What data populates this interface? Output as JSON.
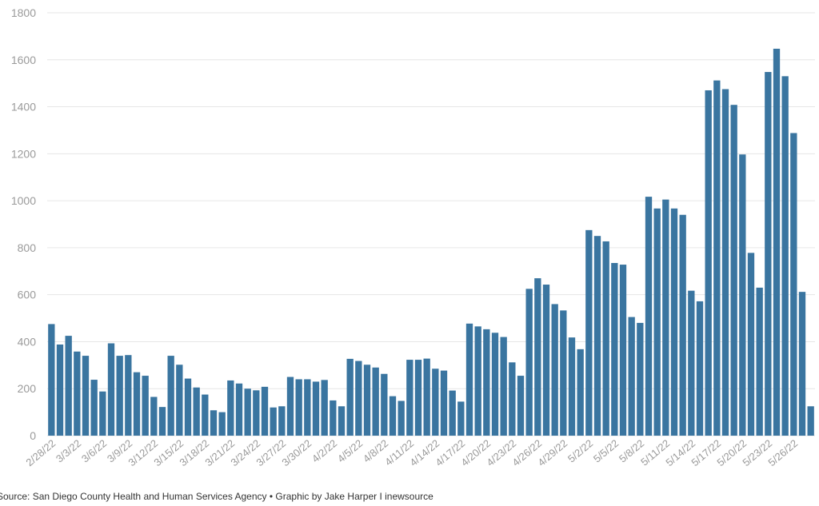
{
  "chart_data": {
    "type": "bar",
    "title": "",
    "xlabel": "",
    "ylabel": "",
    "ylim": [
      0,
      1800
    ],
    "yticks": [
      0,
      200,
      400,
      600,
      800,
      1000,
      1200,
      1400,
      1600,
      1800
    ],
    "grid": true,
    "bar_color": "#3a75a0",
    "tick_labels": [
      "2/28/22",
      "3/3/22",
      "3/6/22",
      "3/9/22",
      "3/12/22",
      "3/15/22",
      "3/18/22",
      "3/21/22",
      "3/24/22",
      "3/27/22",
      "3/30/22",
      "4/2/22",
      "4/5/22",
      "4/8/22",
      "4/11/22",
      "4/14/22",
      "4/17/22",
      "4/20/22",
      "4/23/22",
      "4/26/22",
      "4/29/22",
      "5/2/22",
      "5/5/22",
      "5/8/22",
      "5/11/22",
      "5/14/22",
      "5/17/22",
      "5/20/22",
      "5/23/22",
      "5/26/22"
    ],
    "categories": [
      "2/28/22",
      "3/1/22",
      "3/2/22",
      "3/3/22",
      "3/4/22",
      "3/5/22",
      "3/6/22",
      "3/7/22",
      "3/8/22",
      "3/9/22",
      "3/10/22",
      "3/11/22",
      "3/12/22",
      "3/13/22",
      "3/14/22",
      "3/15/22",
      "3/16/22",
      "3/17/22",
      "3/18/22",
      "3/19/22",
      "3/20/22",
      "3/21/22",
      "3/22/22",
      "3/23/22",
      "3/24/22",
      "3/25/22",
      "3/26/22",
      "3/27/22",
      "3/28/22",
      "3/29/22",
      "3/30/22",
      "3/31/22",
      "4/1/22",
      "4/2/22",
      "4/3/22",
      "4/4/22",
      "4/5/22",
      "4/6/22",
      "4/7/22",
      "4/8/22",
      "4/9/22",
      "4/10/22",
      "4/11/22",
      "4/12/22",
      "4/13/22",
      "4/14/22",
      "4/15/22",
      "4/16/22",
      "4/17/22",
      "4/18/22",
      "4/19/22",
      "4/20/22",
      "4/21/22",
      "4/22/22",
      "4/23/22",
      "4/24/22",
      "4/25/22",
      "4/26/22",
      "4/27/22",
      "4/28/22",
      "4/29/22",
      "4/30/22",
      "5/1/22",
      "5/2/22",
      "5/3/22",
      "5/4/22",
      "5/5/22",
      "5/6/22",
      "5/7/22",
      "5/8/22",
      "5/9/22",
      "5/10/22",
      "5/11/22",
      "5/12/22",
      "5/13/22",
      "5/14/22",
      "5/15/22",
      "5/16/22",
      "5/17/22",
      "5/18/22",
      "5/19/22",
      "5/20/22",
      "5/21/22",
      "5/22/22",
      "5/23/22",
      "5/24/22",
      "5/25/22",
      "5/26/22",
      "5/27/22",
      "5/28/22"
    ],
    "values": [
      475,
      388,
      425,
      358,
      340,
      238,
      188,
      393,
      340,
      343,
      270,
      255,
      165,
      122,
      340,
      302,
      243,
      205,
      175,
      108,
      100,
      235,
      222,
      200,
      193,
      208,
      120,
      125,
      250,
      240,
      240,
      230,
      237,
      150,
      125,
      327,
      318,
      302,
      290,
      263,
      168,
      148,
      323,
      323,
      328,
      285,
      277,
      192,
      145,
      477,
      465,
      453,
      438,
      420,
      312,
      255,
      625,
      670,
      643,
      560,
      533,
      418,
      368,
      875,
      850,
      827,
      735,
      728,
      505,
      480,
      1017,
      967,
      1005,
      967,
      940,
      617,
      572,
      1470,
      1512,
      1475,
      1408,
      1197,
      778,
      630,
      1548,
      1647,
      1530,
      1288,
      612,
      125
    ]
  },
  "source": "Source: San Diego County Health and Human Services Agency • Graphic by Jake Harper I inewsource"
}
